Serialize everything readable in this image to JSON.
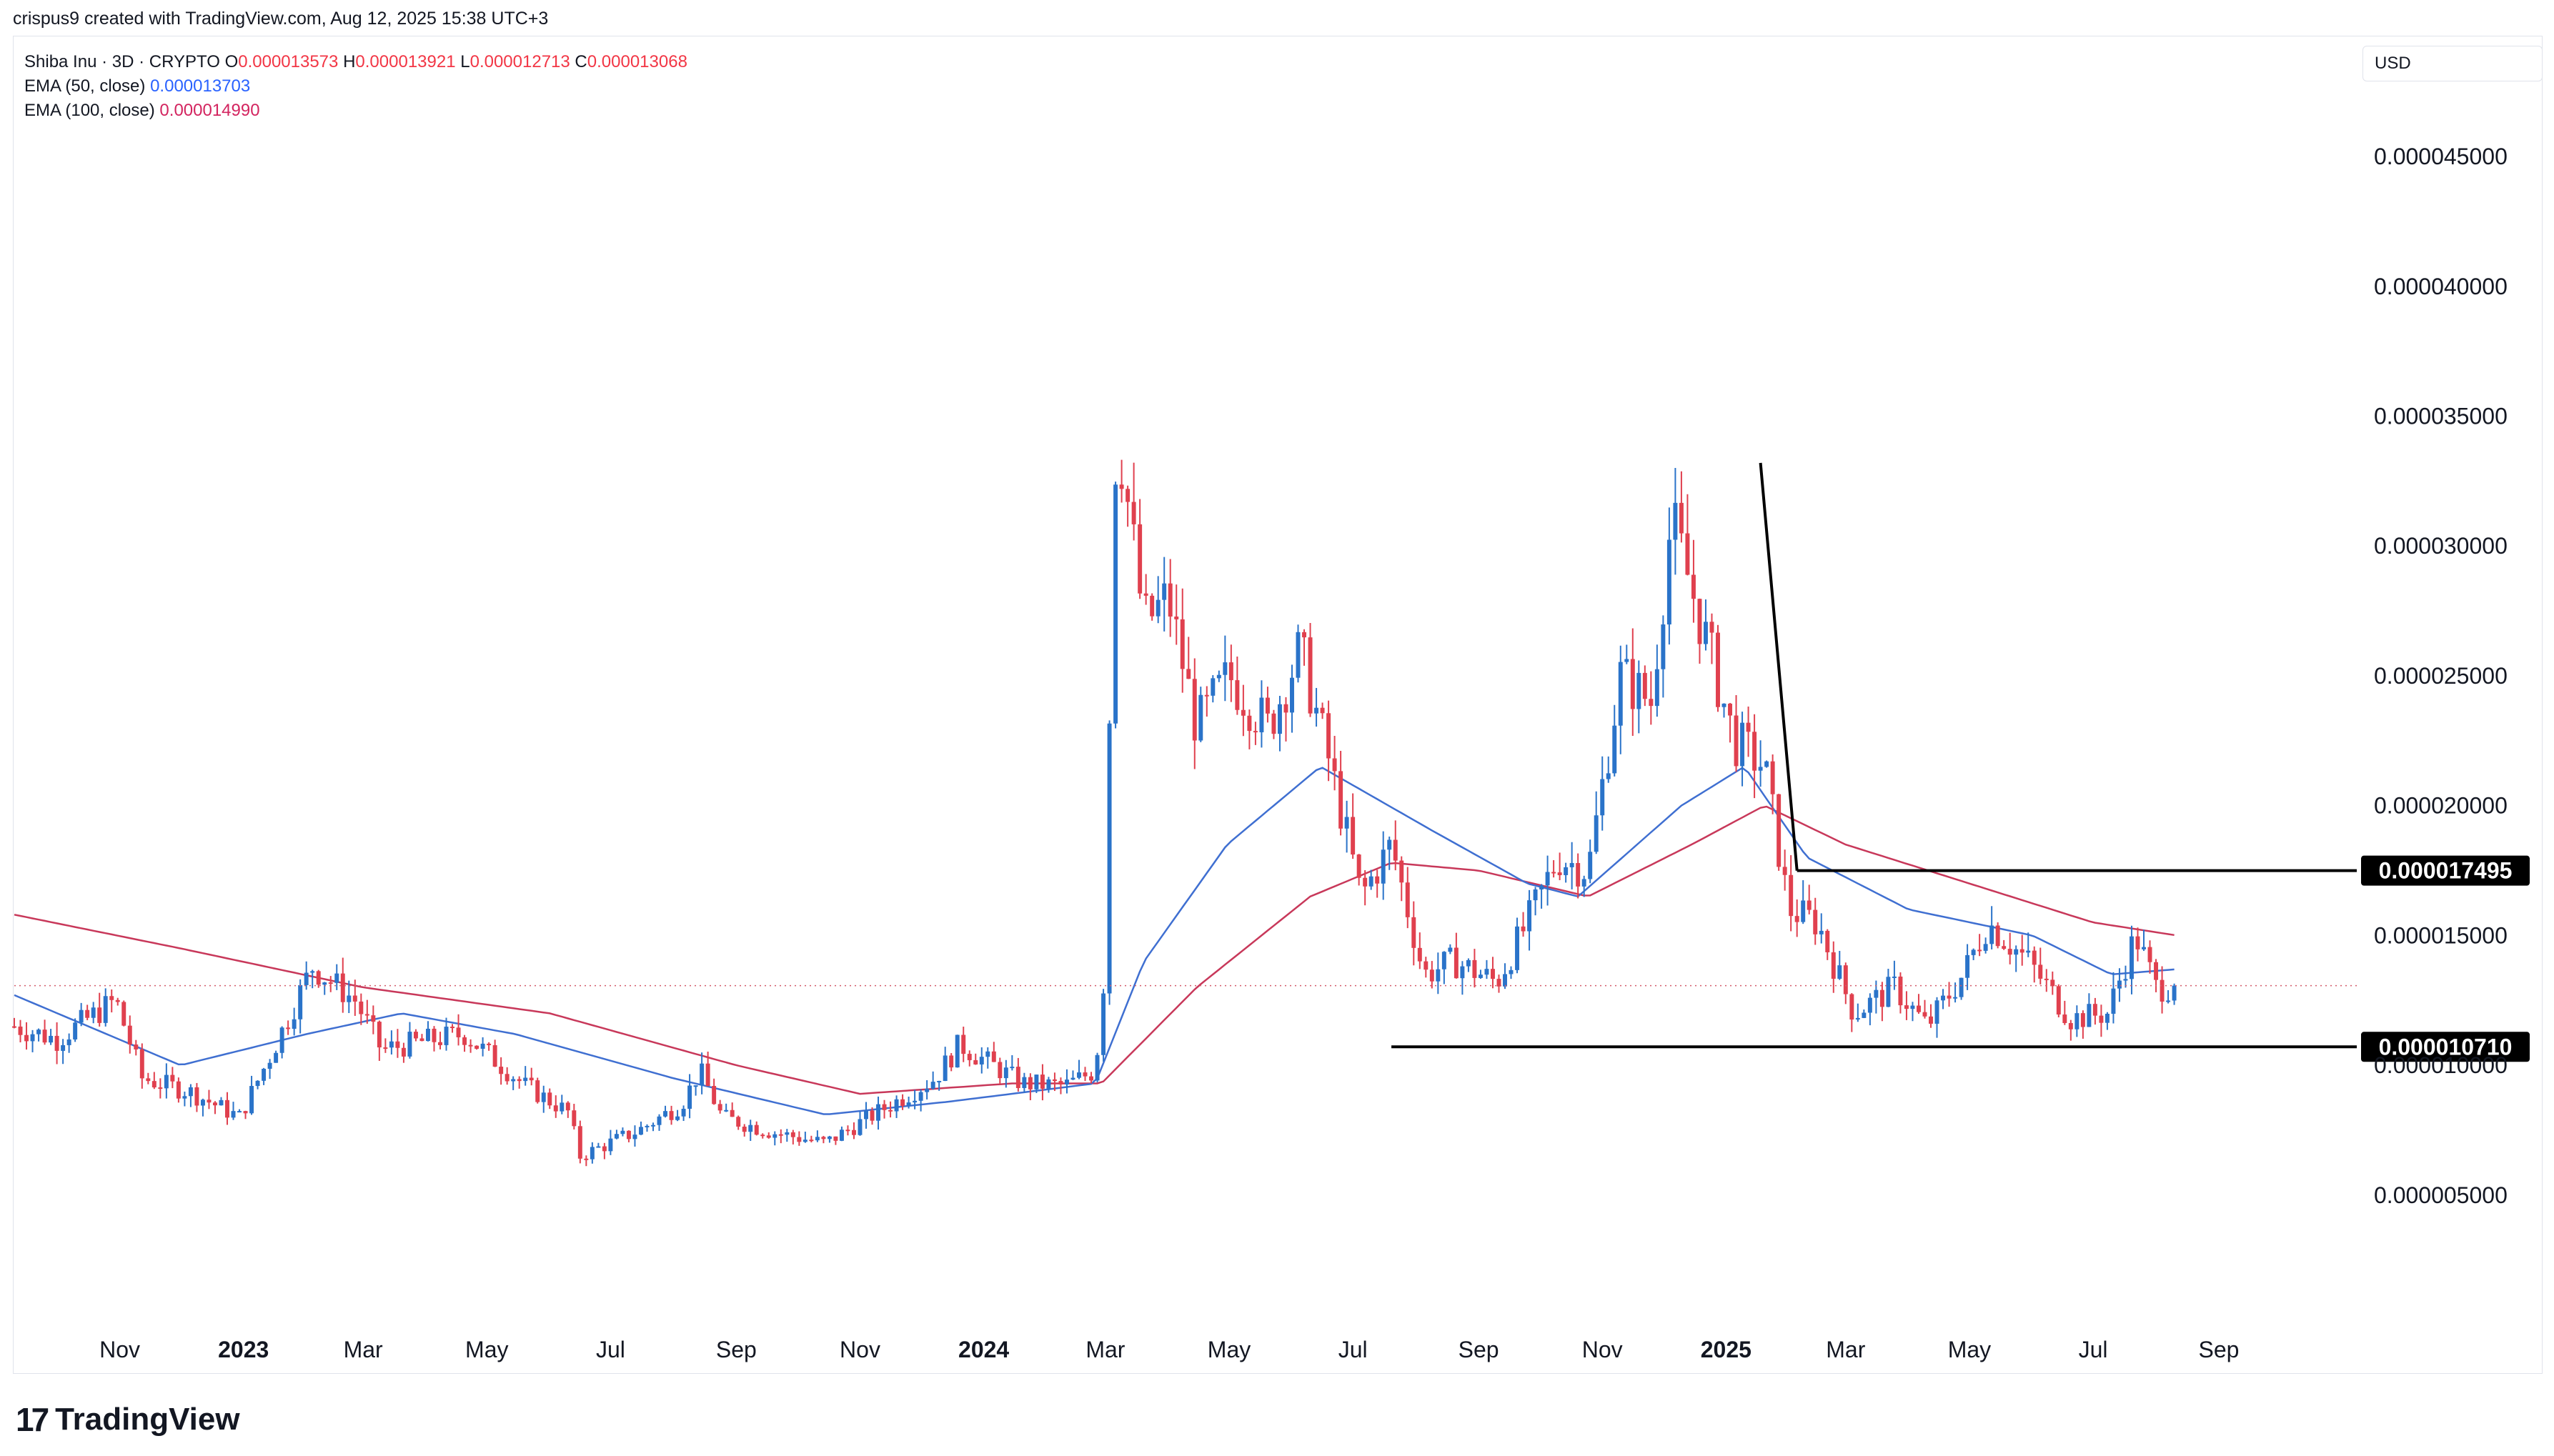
{
  "header": {
    "credit": "crispus9 created with TradingView.com, Aug 12, 2025 15:38 UTC+3"
  },
  "legend": {
    "symbol": "Shiba Inu · 3D · CRYPTO",
    "o_label": "O",
    "o": "0.000013573",
    "h_label": "H",
    "h": "0.000013921",
    "l_label": "L",
    "l": "0.000012713",
    "c_label": "C",
    "c": "0.000013068",
    "ema50_label": "EMA (50, close)",
    "ema50": "0.000013703",
    "ema100_label": "EMA (100, close)",
    "ema100": "0.000014990"
  },
  "currency": "USD",
  "brand": {
    "name": "TradingView",
    "mark": "17"
  },
  "colors": {
    "up": "#2a73c9",
    "down": "#e0404e",
    "ema50": "#3f6fd1",
    "ema100": "#c8385a",
    "last": "#d35a6a"
  },
  "chart_data": {
    "type": "candlestick",
    "title": "Shiba Inu · 3D · CRYPTO",
    "ylim": [
      1.5e-06,
      4.8e-05
    ],
    "yticks": [
      "0.000005000",
      "0.000010000",
      "0.000015000",
      "0.000020000",
      "0.000025000",
      "0.000030000",
      "0.000035000",
      "0.000040000",
      "0.000045000"
    ],
    "xticks": [
      {
        "label": "Nov",
        "date": "2022-11-01",
        "bold": false
      },
      {
        "label": "2023",
        "date": "2023-01-01",
        "bold": true
      },
      {
        "label": "Mar",
        "date": "2023-03-01",
        "bold": false
      },
      {
        "label": "May",
        "date": "2023-05-01",
        "bold": false
      },
      {
        "label": "Jul",
        "date": "2023-07-01",
        "bold": false
      },
      {
        "label": "Sep",
        "date": "2023-09-01",
        "bold": false
      },
      {
        "label": "Nov",
        "date": "2023-11-01",
        "bold": false
      },
      {
        "label": "2024",
        "date": "2024-01-01",
        "bold": true
      },
      {
        "label": "Mar",
        "date": "2024-03-01",
        "bold": false
      },
      {
        "label": "May",
        "date": "2024-05-01",
        "bold": false
      },
      {
        "label": "Jul",
        "date": "2024-07-01",
        "bold": false
      },
      {
        "label": "Sep",
        "date": "2024-09-01",
        "bold": false
      },
      {
        "label": "Nov",
        "date": "2024-11-01",
        "bold": false
      },
      {
        "label": "2025",
        "date": "2025-01-01",
        "bold": true
      },
      {
        "label": "Mar",
        "date": "2025-03-01",
        "bold": false
      },
      {
        "label": "May",
        "date": "2025-05-01",
        "bold": false
      },
      {
        "label": "Jul",
        "date": "2025-07-01",
        "bold": false
      },
      {
        "label": "Sep",
        "date": "2025-09-01",
        "bold": false
      }
    ],
    "close_anchors": [
      [
        "2022-09-10",
        1.15e-05
      ],
      [
        "2022-10-01",
        1.1e-05
      ],
      [
        "2022-10-30",
        1.25e-05
      ],
      [
        "2022-11-12",
        9.5e-06
      ],
      [
        "2022-12-05",
        9e-06
      ],
      [
        "2022-12-30",
        8e-06
      ],
      [
        "2023-01-15",
        1.05e-05
      ],
      [
        "2023-02-04",
        1.38e-05
      ],
      [
        "2023-02-25",
        1.25e-05
      ],
      [
        "2023-03-10",
        1.06e-05
      ],
      [
        "2023-04-05",
        1.1e-05
      ],
      [
        "2023-04-20",
        1.12e-05
      ],
      [
        "2023-05-20",
        9.2e-06
      ],
      [
        "2023-06-10",
        8.2e-06
      ],
      [
        "2023-06-16",
        6.5e-06
      ],
      [
        "2023-07-15",
        7.5e-06
      ],
      [
        "2023-08-05",
        8.5e-06
      ],
      [
        "2023-08-14",
        9.8e-06
      ],
      [
        "2023-08-25",
        8e-06
      ],
      [
        "2023-09-20",
        7.4e-06
      ],
      [
        "2023-10-15",
        7e-06
      ],
      [
        "2023-11-10",
        8.2e-06
      ],
      [
        "2023-12-08",
        9.5e-06
      ],
      [
        "2023-12-20",
        1.08e-05
      ],
      [
        "2024-01-20",
        9.3e-06
      ],
      [
        "2024-02-10",
        9.2e-06
      ],
      [
        "2024-02-25",
        9.8e-06
      ],
      [
        "2024-03-01",
        1.4e-05
      ],
      [
        "2024-03-05",
        3.3e-05
      ],
      [
        "2024-03-08",
        3.4e-05
      ],
      [
        "2024-03-20",
        2.7e-05
      ],
      [
        "2024-04-01",
        2.8e-05
      ],
      [
        "2024-04-15",
        2.3e-05
      ],
      [
        "2024-05-01",
        2.5e-05
      ],
      [
        "2024-05-20",
        2.3e-05
      ],
      [
        "2024-06-05",
        2.6e-05
      ],
      [
        "2024-06-20",
        2.15e-05
      ],
      [
        "2024-07-05",
        1.65e-05
      ],
      [
        "2024-07-20",
        1.85e-05
      ],
      [
        "2024-08-05",
        1.35e-05
      ],
      [
        "2024-08-20",
        1.4e-05
      ],
      [
        "2024-09-10",
        1.32e-05
      ],
      [
        "2024-09-25",
        1.55e-05
      ],
      [
        "2024-10-10",
        1.8e-05
      ],
      [
        "2024-10-25",
        1.75e-05
      ],
      [
        "2024-11-10",
        2.5e-05
      ],
      [
        "2024-11-25",
        2.4e-05
      ],
      [
        "2024-12-05",
        3.1e-05
      ],
      [
        "2024-12-20",
        2.7e-05
      ],
      [
        "2025-01-05",
        2.25e-05
      ],
      [
        "2025-01-20",
        2.15e-05
      ],
      [
        "2025-02-01",
        1.6e-05
      ],
      [
        "2025-02-15",
        1.55e-05
      ],
      [
        "2025-03-05",
        1.2e-05
      ],
      [
        "2025-03-25",
        1.3e-05
      ],
      [
        "2025-04-10",
        1.15e-05
      ],
      [
        "2025-04-28",
        1.35e-05
      ],
      [
        "2025-05-10",
        1.55e-05
      ],
      [
        "2025-05-30",
        1.4e-05
      ],
      [
        "2025-06-20",
        1.18e-05
      ],
      [
        "2025-07-08",
        1.2e-05
      ],
      [
        "2025-07-22",
        1.5e-05
      ],
      [
        "2025-08-01",
        1.3e-05
      ],
      [
        "2025-08-12",
        1.3068e-05
      ]
    ],
    "ema50_anchors": [
      [
        "2022-09-10",
        1.27e-05
      ],
      [
        "2022-12-01",
        1e-05
      ],
      [
        "2023-02-01",
        1.12e-05
      ],
      [
        "2023-03-20",
        1.2e-05
      ],
      [
        "2023-05-15",
        1.12e-05
      ],
      [
        "2023-08-01",
        9.5e-06
      ],
      [
        "2023-10-15",
        8.1e-06
      ],
      [
        "2023-12-15",
        8.6e-06
      ],
      [
        "2024-02-25",
        9.3e-06
      ],
      [
        "2024-03-20",
        1.4e-05
      ],
      [
        "2024-04-30",
        1.85e-05
      ],
      [
        "2024-06-15",
        2.15e-05
      ],
      [
        "2024-08-10",
        1.9e-05
      ],
      [
        "2024-09-25",
        1.7e-05
      ],
      [
        "2024-10-20",
        1.65e-05
      ],
      [
        "2024-12-10",
        2e-05
      ],
      [
        "2025-01-10",
        2.15e-05
      ],
      [
        "2025-02-10",
        1.8e-05
      ],
      [
        "2025-04-01",
        1.6e-05
      ],
      [
        "2025-06-01",
        1.5e-05
      ],
      [
        "2025-07-10",
        1.35e-05
      ],
      [
        "2025-08-12",
        1.3703e-05
      ]
    ],
    "ema100_anchors": [
      [
        "2022-09-10",
        1.58e-05
      ],
      [
        "2022-12-01",
        1.45e-05
      ],
      [
        "2023-03-01",
        1.3e-05
      ],
      [
        "2023-06-01",
        1.2e-05
      ],
      [
        "2023-09-01",
        1e-05
      ],
      [
        "2023-11-01",
        8.9e-06
      ],
      [
        "2024-01-15",
        9.3e-06
      ],
      [
        "2024-02-28",
        9.3e-06
      ],
      [
        "2024-04-15",
        1.3e-05
      ],
      [
        "2024-06-10",
        1.65e-05
      ],
      [
        "2024-07-20",
        1.78e-05
      ],
      [
        "2024-09-01",
        1.75e-05
      ],
      [
        "2024-10-25",
        1.65e-05
      ],
      [
        "2024-12-15",
        1.85e-05
      ],
      [
        "2025-01-20",
        2e-05
      ],
      [
        "2025-03-01",
        1.85e-05
      ],
      [
        "2025-05-01",
        1.7e-05
      ],
      [
        "2025-07-01",
        1.55e-05
      ],
      [
        "2025-08-12",
        1.499e-05
      ]
    ],
    "levels": [
      {
        "label": "0.000017495",
        "value": 1.7495e-05,
        "from": "2025-02-05"
      },
      {
        "label": "0.000010710",
        "value": 1.071e-05,
        "from": "2024-07-20"
      }
    ],
    "trendline": [
      [
        "2025-01-18",
        3.32e-05
      ],
      [
        "2025-02-05",
        1.7495e-05
      ]
    ],
    "last_price": 1.3068e-05,
    "grid": false
  }
}
